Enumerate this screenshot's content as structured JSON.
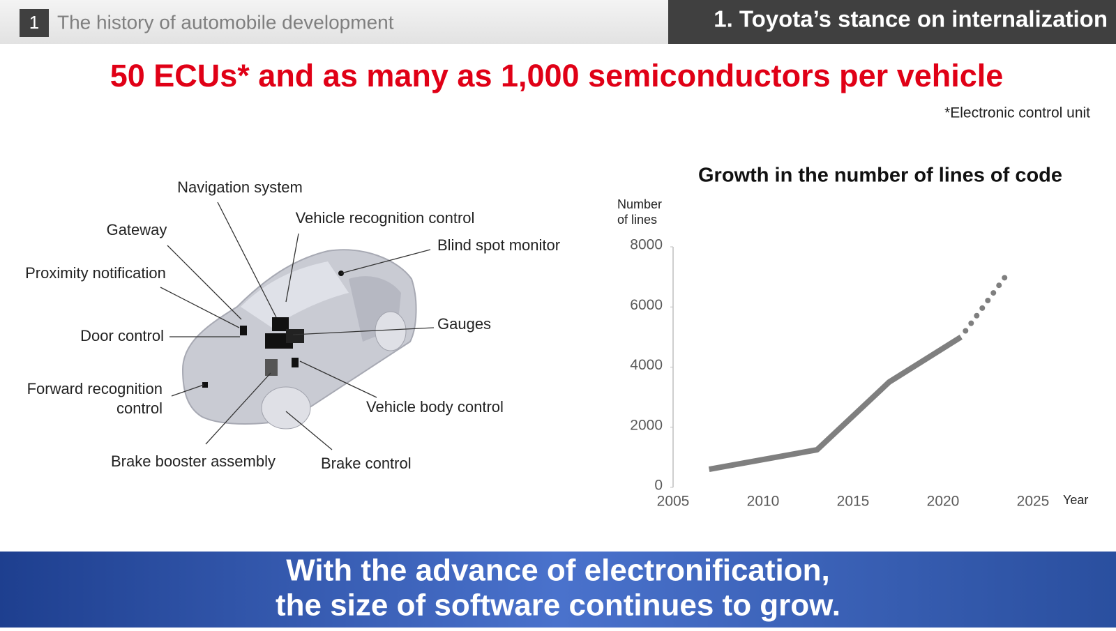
{
  "header": {
    "section_number": "1",
    "section_title": "The history of automobile development",
    "chapter": "1. Toyota’s stance on internalization"
  },
  "title": "50 ECUs* and as many as 1,000 semiconductors per vehicle",
  "footnote": "*Electronic control unit",
  "diagram": {
    "labels": [
      "Navigation system",
      "Gateway",
      "Vehicle recognition control",
      "Blind spot monitor",
      "Proximity notification",
      "Door control",
      "Gauges",
      [
        "Forward recognition",
        "control"
      ],
      "Vehicle body control",
      "Brake booster assembly",
      "Brake control"
    ]
  },
  "chart_data": {
    "type": "line",
    "title": "Growth in the number of lines of code",
    "y_label": [
      "Number",
      "of lines"
    ],
    "x_label": "Year",
    "x": [
      2007,
      2013,
      2017,
      2021,
      2023.7
    ],
    "series": [
      {
        "color": "#7f7f7f",
        "values": [
          600,
          1250,
          3500,
          5000,
          null
        ]
      },
      {
        "color": "#7f7f7f",
        "values": [
          null,
          null,
          null,
          5000,
          7200
        ],
        "dotted": true
      }
    ],
    "xlim": [
      2005,
      2025
    ],
    "xticks": [
      2005,
      2010,
      2015,
      2020,
      2025
    ],
    "ylim": [
      0,
      8000
    ],
    "yticks": [
      0,
      2000,
      4000,
      6000,
      8000
    ]
  },
  "footer": {
    "lines": [
      "With the advance of electronification,",
      "the size of software continues to grow."
    ]
  }
}
